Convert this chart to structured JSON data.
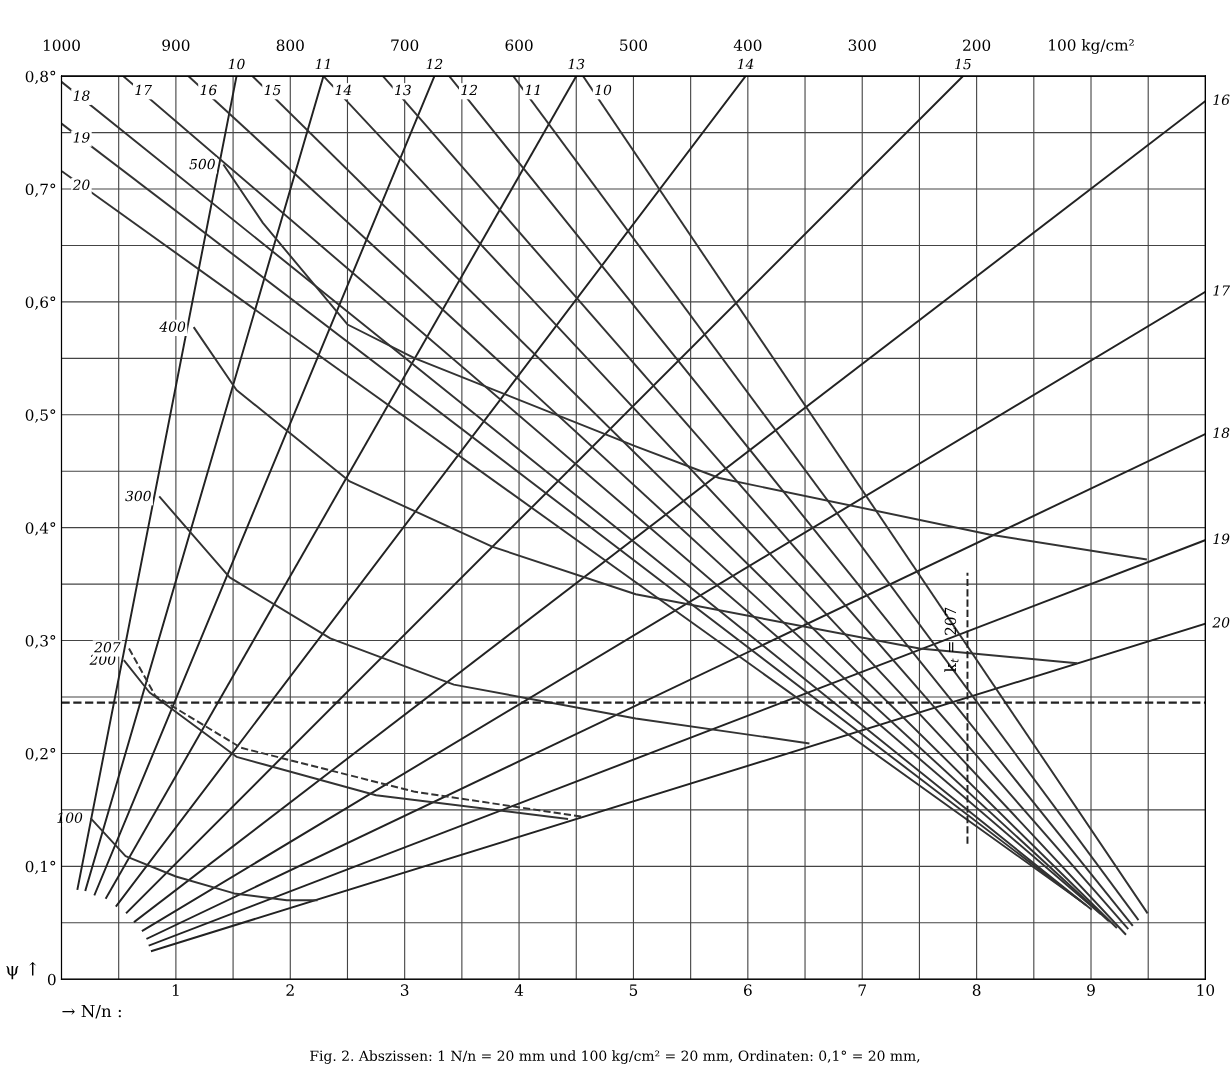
{
  "chart_data": {
    "type": "line",
    "xlabel": "→ N/n :",
    "ylabel": "ψ ↑",
    "xlim": [
      0,
      10
    ],
    "ylim": [
      0,
      0.8
    ],
    "xticks": [
      {
        "value": 0.5,
        "label": null
      },
      1,
      {
        "value": 1.5,
        "label": null
      },
      2,
      {
        "value": 2.5,
        "label": null
      },
      3,
      {
        "value": 3.5,
        "label": null
      },
      4,
      {
        "value": 4.5,
        "label": null
      },
      5,
      {
        "value": 5.5,
        "label": null
      },
      6,
      {
        "value": 6.5,
        "label": null
      },
      7,
      {
        "value": 7.5,
        "label": null
      },
      8,
      {
        "value": 8.5,
        "label": null
      },
      9,
      {
        "value": 9.5,
        "label": null
      },
      10
    ],
    "yticks": [
      0,
      {
        "value": 0.05,
        "label": null
      },
      {
        "value": 0.1,
        "label": "0,1°"
      },
      {
        "value": 0.15,
        "label": null
      },
      {
        "value": 0.2,
        "label": "0,2°"
      },
      {
        "value": 0.25,
        "label": null
      },
      {
        "value": 0.3,
        "label": "0,3°"
      },
      {
        "value": 0.35,
        "label": null
      },
      {
        "value": 0.4,
        "label": "0,4°"
      },
      {
        "value": 0.45,
        "label": null
      },
      {
        "value": 0.5,
        "label": "0,5°"
      },
      {
        "value": 0.55,
        "label": null
      },
      {
        "value": 0.6,
        "label": "0,6°"
      },
      {
        "value": 0.65,
        "label": null
      },
      {
        "value": 0.7,
        "label": "0,7°"
      },
      {
        "value": 0.75,
        "label": null
      },
      {
        "value": 0.8,
        "label": "0,8°"
      }
    ],
    "x2lim": [
      1000,
      0
    ],
    "x2ticks": [
      1000,
      900,
      800,
      700,
      600,
      500,
      400,
      300,
      200,
      {
        "value": 100,
        "label": "100 kg/cm²"
      }
    ],
    "grid": true,
    "legend": false,
    "marker": "none",
    "series": [
      {
        "name": "10",
        "color": "#222222",
        "x": [
          0.14,
          1.53
        ],
        "values": [
          0.08,
          0.8
        ]
      },
      {
        "name": "11",
        "color": "#222222",
        "x": [
          0.21,
          2.29
        ],
        "values": [
          0.079,
          0.8
        ]
      },
      {
        "name": "12",
        "color": "#222222",
        "x": [
          0.29,
          3.26
        ],
        "values": [
          0.075,
          0.8
        ]
      },
      {
        "name": "13",
        "color": "#222222",
        "x": [
          0.39,
          4.5
        ],
        "values": [
          0.072,
          0.8
        ]
      },
      {
        "name": "14",
        "color": "#222222",
        "x": [
          0.48,
          5.98
        ],
        "values": [
          0.065,
          0.8
        ]
      },
      {
        "name": "15",
        "color": "#222222",
        "x": [
          0.57,
          7.88
        ],
        "values": [
          0.059,
          0.8
        ]
      },
      {
        "name": "16",
        "color": "#222222",
        "x": [
          0.64,
          10
        ],
        "values": [
          0.051,
          0.778
        ]
      },
      {
        "name": "17",
        "color": "#222222",
        "x": [
          0.71,
          10
        ],
        "values": [
          0.043,
          0.609
        ]
      },
      {
        "name": "18",
        "color": "#222222",
        "x": [
          0.75,
          10
        ],
        "values": [
          0.036,
          0.483
        ]
      },
      {
        "name": "19",
        "color": "#222222",
        "x": [
          0.77,
          10
        ],
        "values": [
          0.03,
          0.389
        ]
      },
      {
        "name": "20",
        "color": "#222222",
        "x": [
          0.79,
          10
        ],
        "values": [
          0.025,
          0.315
        ]
      },
      {
        "name": "10",
        "color": "#333333",
        "x": [
          4.56,
          9.49
        ],
        "values": [
          0.8,
          0.059
        ]
      },
      {
        "name": "11",
        "color": "#333333",
        "x": [
          3.95,
          9.41
        ],
        "values": [
          0.8,
          0.053
        ]
      },
      {
        "name": "12",
        "color": "#333333",
        "x": [
          3.39,
          9.36
        ],
        "values": [
          0.8,
          0.048
        ]
      },
      {
        "name": "13",
        "color": "#333333",
        "x": [
          2.81,
          9.32
        ],
        "values": [
          0.8,
          0.045
        ]
      },
      {
        "name": "14",
        "color": "#333333",
        "x": [
          2.29,
          9.3
        ],
        "values": [
          0.8,
          0.04
        ]
      },
      {
        "name": "15",
        "color": "#333333",
        "x": [
          1.67,
          9.22
        ],
        "values": [
          0.8,
          0.046
        ]
      },
      {
        "name": "16",
        "color": "#333333",
        "x": [
          1.11,
          9.15
        ],
        "values": [
          0.8,
          0.052
        ]
      },
      {
        "name": "17",
        "color": "#333333",
        "x": [
          0.54,
          9.08
        ],
        "values": [
          0.8,
          0.058
        ]
      },
      {
        "name": "18",
        "color": "#333333",
        "x": [
          0,
          9.0
        ],
        "values": [
          0.795,
          0.062
        ]
      },
      {
        "name": "19",
        "color": "#333333",
        "x": [
          0,
          8.95
        ],
        "values": [
          0.758,
          0.066
        ]
      },
      {
        "name": "20",
        "color": "#333333",
        "x": [
          0,
          8.9
        ],
        "values": [
          0.716,
          0.07
        ]
      },
      {
        "name": "100",
        "color": "#333333",
        "x": [
          0.26,
          0.56,
          1.0,
          1.51,
          1.97,
          2.23
        ],
        "values": [
          0.142,
          0.109,
          0.091,
          0.076,
          0.07,
          0.07
        ]
      },
      {
        "name": "200",
        "color": "#333333",
        "x": [
          0.55,
          0.77,
          1.53,
          2.75,
          4.42
        ],
        "values": [
          0.282,
          0.254,
          0.197,
          0.163,
          0.142
        ]
      },
      {
        "name": "207",
        "color": "#333333",
        "line_style": "dashed",
        "x": [
          0.59,
          0.82,
          1.57,
          3.09,
          4.55
        ],
        "values": [
          0.293,
          0.251,
          0.205,
          0.166,
          0.144
        ]
      },
      {
        "name": "300",
        "color": "#333333",
        "x": [
          0.86,
          1.47,
          2.35,
          3.43,
          5.02,
          6.53
        ],
        "values": [
          0.427,
          0.356,
          0.302,
          0.261,
          0.231,
          0.209
        ]
      },
      {
        "name": "400",
        "color": "#333333",
        "x": [
          1.16,
          1.53,
          2.52,
          3.77,
          5.02,
          7.5,
          8.87
        ],
        "values": [
          0.577,
          0.522,
          0.441,
          0.383,
          0.341,
          0.293,
          0.28
        ]
      },
      {
        "name": "500",
        "color": "#333333",
        "x": [
          1.42,
          1.76,
          2.5,
          3.09,
          5.02,
          5.75,
          8.11,
          9.48
        ],
        "values": [
          0.721,
          0.67,
          0.58,
          0.55,
          0.472,
          0.444,
          0.394,
          0.372
        ]
      },
      {
        "color": "#222222",
        "line_style": "dashed",
        "x": [
          7.92,
          7.92
        ],
        "values": [
          0.12,
          0.36
        ]
      }
    ],
    "ref_lines": [
      {
        "axis": "y",
        "value": 0.245,
        "label": null,
        "color": "#222222",
        "line_style": "dashed"
      }
    ],
    "annotations": [
      {
        "text": "k$_{t}$ = 207",
        "x": 7.92,
        "y": 0.33
      },
      "Fig. 2. Abszissen: 1 N/n = 20 mm und 100 kg/cm² = 20 mm, Ordinaten: 0,1° = 20 mm,"
    ]
  }
}
